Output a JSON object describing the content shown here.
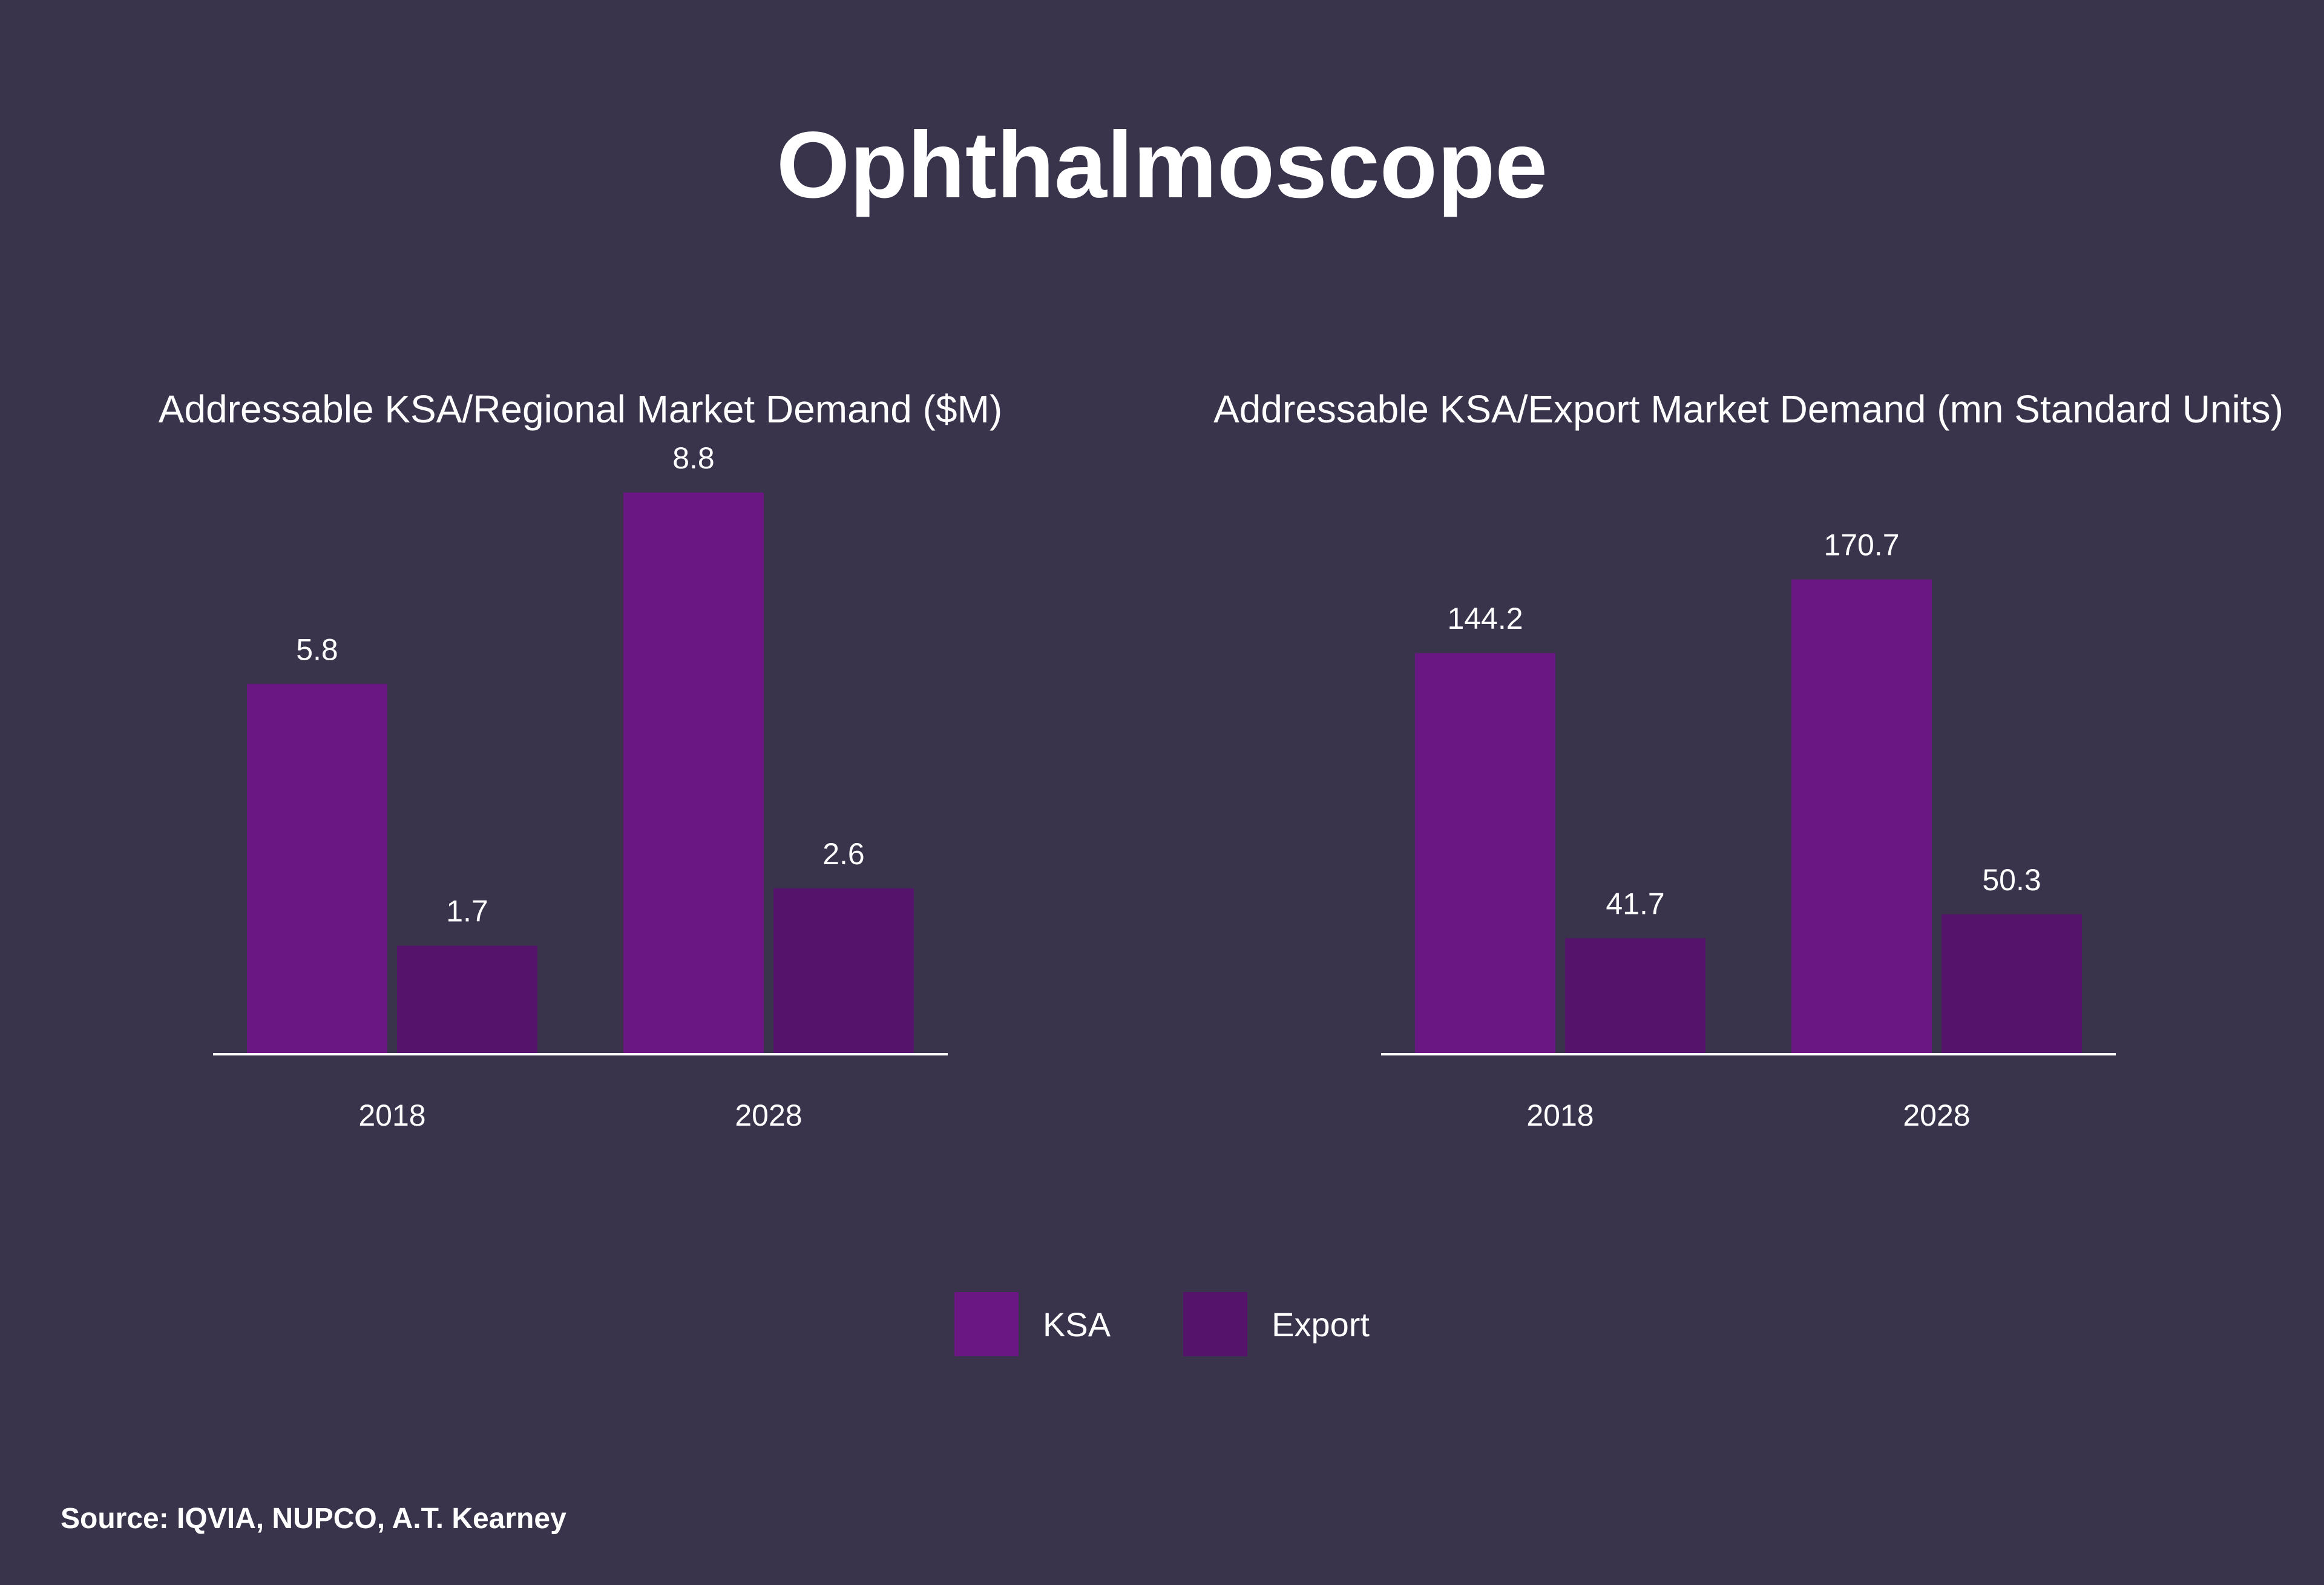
{
  "title": "Ophthalmoscope",
  "colors": {
    "background": "#39344b",
    "ksa": "#6a1784",
    "export": "#55136b",
    "axis": "#ffffff",
    "text": "#ffffff"
  },
  "legend": {
    "items": [
      {
        "name": "KSA",
        "color": "#6a1784"
      },
      {
        "name": "Export",
        "color": "#55136b"
      }
    ]
  },
  "chart_data": [
    {
      "type": "bar",
      "title": "Addressable KSA/Regional Market Demand ($M)",
      "categories": [
        "2018",
        "2028"
      ],
      "series": [
        {
          "name": "KSA",
          "values": [
            5.8,
            8.8
          ]
        },
        {
          "name": "Export",
          "values": [
            1.7,
            2.6
          ]
        }
      ],
      "ylim": [
        0,
        9.5
      ],
      "xlabel": "",
      "ylabel": "",
      "grid": false
    },
    {
      "type": "bar",
      "title": "Addressable KSA/Export Market Demand (mn Standard Units)",
      "categories": [
        "2018",
        "2028"
      ],
      "series": [
        {
          "name": "KSA",
          "values": [
            144.2,
            170.7
          ]
        },
        {
          "name": "Export",
          "values": [
            41.7,
            50.3
          ]
        }
      ],
      "ylim": [
        0,
        218
      ],
      "xlabel": "",
      "ylabel": "",
      "grid": false
    }
  ],
  "source": "Source: IQVIA, NUPCO, A.T. Kearney"
}
